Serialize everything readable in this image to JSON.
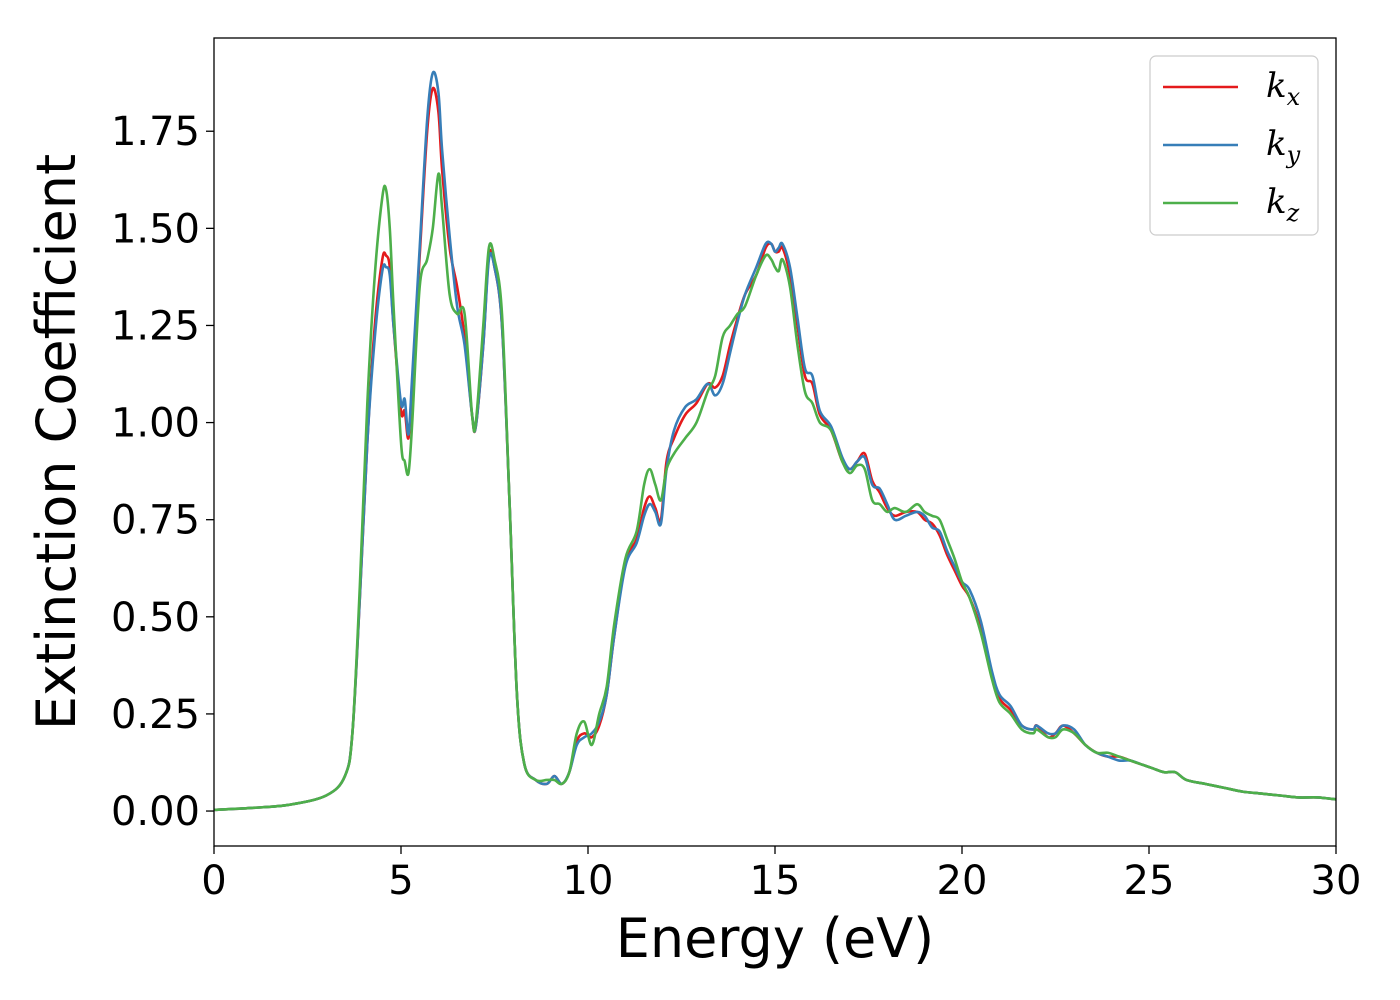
{
  "chart_data": {
    "type": "line",
    "title": "",
    "xlabel": "Energy (eV)",
    "ylabel": "Extinction Coefficient",
    "xlim": [
      0,
      30
    ],
    "ylim": [
      -0.09,
      1.99
    ],
    "xticks": [
      "0",
      "5",
      "10",
      "15",
      "20",
      "25",
      "30"
    ],
    "yticks": [
      "0.00",
      "0.25",
      "0.50",
      "0.75",
      "1.00",
      "1.25",
      "1.50",
      "1.75"
    ],
    "grid": false,
    "legend_position": "top-right",
    "series": [
      {
        "name": "k_x",
        "label_base": "k",
        "label_sub": "x",
        "color": "#e41a1c",
        "x": [
          0,
          1,
          2,
          3,
          3.5,
          3.7,
          3.9,
          4.1,
          4.3,
          4.5,
          4.6,
          4.7,
          4.8,
          5.0,
          5.1,
          5.2,
          5.3,
          5.5,
          5.7,
          5.85,
          6.0,
          6.1,
          6.3,
          6.5,
          6.7,
          6.9,
          7.0,
          7.2,
          7.35,
          7.5,
          7.7,
          7.9,
          8.1,
          8.3,
          8.6,
          8.9,
          9.1,
          9.3,
          9.5,
          9.7,
          9.9,
          10.1,
          10.3,
          10.5,
          10.7,
          11.0,
          11.3,
          11.5,
          11.65,
          11.8,
          11.95,
          12.1,
          12.3,
          12.6,
          12.9,
          13.2,
          13.4,
          13.6,
          13.8,
          14.0,
          14.2,
          14.5,
          14.75,
          14.9,
          15.0,
          15.1,
          15.2,
          15.4,
          15.6,
          15.8,
          16.0,
          16.2,
          16.5,
          16.8,
          17.0,
          17.2,
          17.4,
          17.6,
          17.8,
          18.0,
          18.2,
          18.5,
          18.8,
          19.0,
          19.2,
          19.4,
          19.6,
          19.8,
          20.0,
          20.2,
          20.5,
          20.8,
          21.0,
          21.3,
          21.6,
          21.9,
          22.0,
          22.3,
          22.5,
          22.7,
          23.0,
          23.3,
          23.6,
          23.9,
          24.2,
          24.5,
          24.8,
          25.1,
          25.4,
          25.7,
          26.0,
          26.5,
          27.0,
          27.5,
          28.0,
          28.5,
          29.0,
          29.5,
          30.0
        ],
        "y": [
          0.003,
          0.008,
          0.016,
          0.04,
          0.09,
          0.2,
          0.55,
          0.95,
          1.25,
          1.42,
          1.43,
          1.4,
          1.25,
          1.03,
          1.03,
          0.96,
          1.1,
          1.43,
          1.75,
          1.86,
          1.8,
          1.65,
          1.45,
          1.35,
          1.22,
          1.02,
          0.99,
          1.2,
          1.43,
          1.4,
          1.25,
          0.8,
          0.3,
          0.12,
          0.08,
          0.07,
          0.09,
          0.07,
          0.1,
          0.18,
          0.2,
          0.19,
          0.22,
          0.3,
          0.45,
          0.64,
          0.7,
          0.78,
          0.81,
          0.78,
          0.75,
          0.9,
          0.96,
          1.02,
          1.05,
          1.1,
          1.09,
          1.12,
          1.2,
          1.27,
          1.33,
          1.38,
          1.45,
          1.46,
          1.44,
          1.44,
          1.45,
          1.38,
          1.25,
          1.12,
          1.1,
          1.02,
          0.98,
          0.9,
          0.88,
          0.9,
          0.92,
          0.85,
          0.82,
          0.78,
          0.76,
          0.77,
          0.77,
          0.75,
          0.74,
          0.71,
          0.66,
          0.62,
          0.58,
          0.55,
          0.47,
          0.35,
          0.29,
          0.26,
          0.22,
          0.21,
          0.22,
          0.19,
          0.2,
          0.22,
          0.2,
          0.17,
          0.15,
          0.14,
          0.14,
          0.13,
          0.12,
          0.11,
          0.1,
          0.1,
          0.08,
          0.07,
          0.06,
          0.05,
          0.045,
          0.04,
          0.035,
          0.035,
          0.03
        ]
      },
      {
        "name": "k_y",
        "label_base": "k",
        "label_sub": "y",
        "color": "#377eb8",
        "x": [
          0,
          1,
          2,
          3,
          3.5,
          3.7,
          3.9,
          4.1,
          4.3,
          4.5,
          4.6,
          4.7,
          4.8,
          5.0,
          5.1,
          5.2,
          5.3,
          5.5,
          5.7,
          5.85,
          6.0,
          6.1,
          6.3,
          6.5,
          6.7,
          6.9,
          7.0,
          7.2,
          7.35,
          7.5,
          7.7,
          7.9,
          8.1,
          8.3,
          8.6,
          8.9,
          9.1,
          9.3,
          9.5,
          9.7,
          9.9,
          10.1,
          10.3,
          10.5,
          10.7,
          11.0,
          11.3,
          11.5,
          11.65,
          11.8,
          11.95,
          12.1,
          12.3,
          12.6,
          12.9,
          13.2,
          13.4,
          13.6,
          13.8,
          14.0,
          14.2,
          14.5,
          14.75,
          14.9,
          15.0,
          15.1,
          15.2,
          15.4,
          15.6,
          15.8,
          16.0,
          16.2,
          16.5,
          16.8,
          17.0,
          17.2,
          17.4,
          17.6,
          17.8,
          18.0,
          18.2,
          18.5,
          18.8,
          19.0,
          19.2,
          19.4,
          19.6,
          19.8,
          20.0,
          20.2,
          20.5,
          20.8,
          21.0,
          21.3,
          21.6,
          21.9,
          22.0,
          22.3,
          22.5,
          22.7,
          23.0,
          23.3,
          23.6,
          23.9,
          24.2,
          24.5,
          24.8,
          25.1,
          25.4,
          25.7,
          26.0,
          26.5,
          27.0,
          27.5,
          28.0,
          28.5,
          29.0,
          29.5,
          30.0
        ],
        "y": [
          0.003,
          0.008,
          0.016,
          0.04,
          0.09,
          0.2,
          0.55,
          0.95,
          1.22,
          1.39,
          1.4,
          1.38,
          1.25,
          1.05,
          1.06,
          0.97,
          1.12,
          1.45,
          1.78,
          1.9,
          1.85,
          1.7,
          1.48,
          1.3,
          1.2,
          1.02,
          0.99,
          1.2,
          1.42,
          1.4,
          1.25,
          0.8,
          0.3,
          0.12,
          0.08,
          0.07,
          0.09,
          0.07,
          0.1,
          0.17,
          0.19,
          0.2,
          0.23,
          0.3,
          0.45,
          0.63,
          0.69,
          0.76,
          0.79,
          0.77,
          0.74,
          0.88,
          0.98,
          1.04,
          1.06,
          1.1,
          1.07,
          1.1,
          1.18,
          1.26,
          1.33,
          1.4,
          1.46,
          1.46,
          1.44,
          1.45,
          1.46,
          1.4,
          1.27,
          1.14,
          1.12,
          1.03,
          0.99,
          0.91,
          0.88,
          0.9,
          0.91,
          0.84,
          0.83,
          0.79,
          0.75,
          0.76,
          0.77,
          0.76,
          0.73,
          0.72,
          0.67,
          0.63,
          0.59,
          0.57,
          0.49,
          0.36,
          0.3,
          0.27,
          0.22,
          0.21,
          0.22,
          0.2,
          0.2,
          0.22,
          0.21,
          0.17,
          0.15,
          0.14,
          0.13,
          0.13,
          0.12,
          0.11,
          0.1,
          0.1,
          0.08,
          0.07,
          0.06,
          0.05,
          0.045,
          0.04,
          0.035,
          0.035,
          0.03
        ]
      },
      {
        "name": "k_z",
        "label_base": "k",
        "label_sub": "z",
        "color": "#4daf4a",
        "x": [
          0,
          1,
          2,
          3,
          3.5,
          3.7,
          3.9,
          4.1,
          4.3,
          4.5,
          4.6,
          4.7,
          4.8,
          5.0,
          5.1,
          5.2,
          5.3,
          5.5,
          5.7,
          5.85,
          6.0,
          6.1,
          6.3,
          6.5,
          6.7,
          6.9,
          7.0,
          7.2,
          7.35,
          7.5,
          7.7,
          7.9,
          8.1,
          8.3,
          8.6,
          8.9,
          9.1,
          9.3,
          9.5,
          9.7,
          9.9,
          10.1,
          10.3,
          10.5,
          10.7,
          11.0,
          11.3,
          11.5,
          11.65,
          11.8,
          11.95,
          12.1,
          12.3,
          12.6,
          12.9,
          13.2,
          13.4,
          13.6,
          13.8,
          14.0,
          14.2,
          14.5,
          14.75,
          14.9,
          15.0,
          15.1,
          15.2,
          15.4,
          15.6,
          15.8,
          16.0,
          16.2,
          16.5,
          16.8,
          17.0,
          17.2,
          17.4,
          17.6,
          17.8,
          18.0,
          18.2,
          18.5,
          18.8,
          19.0,
          19.2,
          19.4,
          19.6,
          19.8,
          20.0,
          20.2,
          20.5,
          20.8,
          21.0,
          21.3,
          21.6,
          21.9,
          22.0,
          22.3,
          22.5,
          22.7,
          23.0,
          23.3,
          23.6,
          23.9,
          24.2,
          24.5,
          24.8,
          25.1,
          25.4,
          25.7,
          26.0,
          26.5,
          27.0,
          27.5,
          28.0,
          28.5,
          29.0,
          29.5,
          30.0
        ],
        "y": [
          0.003,
          0.008,
          0.016,
          0.04,
          0.09,
          0.2,
          0.58,
          1.05,
          1.38,
          1.58,
          1.6,
          1.5,
          1.3,
          0.95,
          0.9,
          0.87,
          1.0,
          1.35,
          1.42,
          1.5,
          1.64,
          1.55,
          1.33,
          1.28,
          1.28,
          1.02,
          1.0,
          1.25,
          1.45,
          1.42,
          1.28,
          0.8,
          0.3,
          0.12,
          0.08,
          0.08,
          0.08,
          0.07,
          0.1,
          0.2,
          0.23,
          0.17,
          0.25,
          0.32,
          0.48,
          0.65,
          0.72,
          0.84,
          0.88,
          0.84,
          0.8,
          0.88,
          0.92,
          0.96,
          1.0,
          1.08,
          1.12,
          1.22,
          1.25,
          1.28,
          1.3,
          1.38,
          1.43,
          1.42,
          1.4,
          1.39,
          1.42,
          1.35,
          1.2,
          1.08,
          1.05,
          1.0,
          0.98,
          0.9,
          0.87,
          0.89,
          0.88,
          0.8,
          0.79,
          0.77,
          0.78,
          0.77,
          0.79,
          0.77,
          0.76,
          0.75,
          0.7,
          0.65,
          0.59,
          0.55,
          0.46,
          0.34,
          0.28,
          0.25,
          0.21,
          0.2,
          0.21,
          0.19,
          0.19,
          0.21,
          0.2,
          0.17,
          0.15,
          0.15,
          0.14,
          0.13,
          0.12,
          0.11,
          0.1,
          0.1,
          0.08,
          0.07,
          0.06,
          0.05,
          0.045,
          0.04,
          0.035,
          0.035,
          0.03
        ]
      }
    ]
  }
}
